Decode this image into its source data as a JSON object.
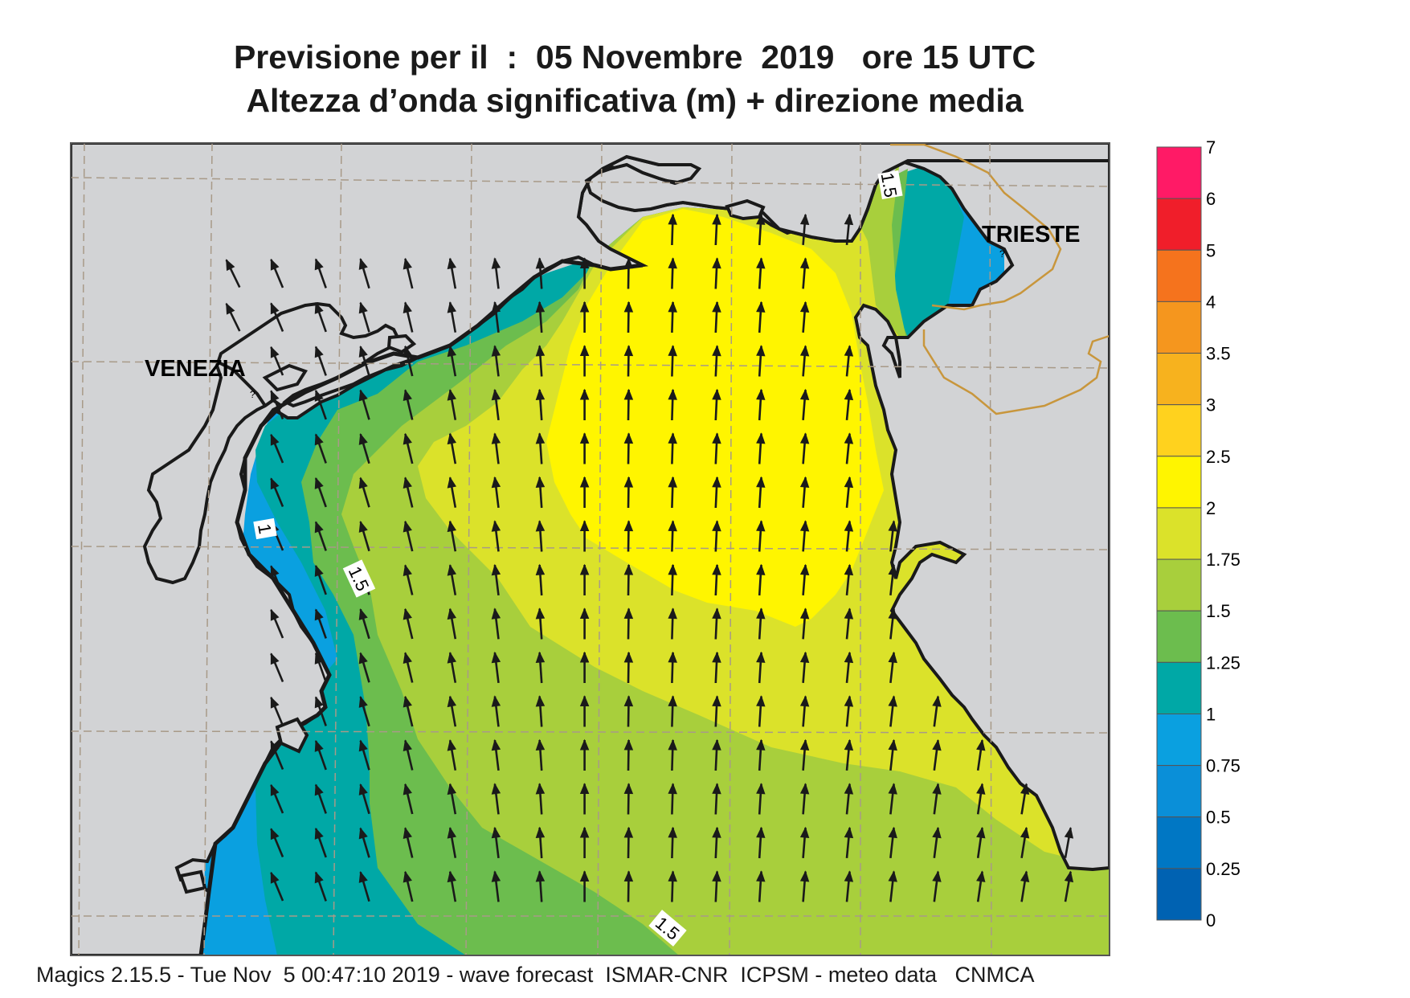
{
  "title_line1": "Previsione per il  :  05 Novembre  2019   ore 15 UTC",
  "title_line2": "Altezza d’onda significativa (m) + direzione media",
  "cities": {
    "venezia": "VENEZIA",
    "trieste": "TRIESTE"
  },
  "contour_labels": {
    "top": "1.5",
    "left_one": "1",
    "left_mid": "1.5",
    "bottom": "1.5"
  },
  "legend": {
    "labels": [
      "7",
      "6",
      "5",
      "4",
      "3.5",
      "3",
      "2.5",
      "2",
      "1.75",
      "1.5",
      "1.25",
      "1",
      "0.75",
      "0.5",
      "0.25",
      "0"
    ],
    "colors": [
      "#ff1a66",
      "#f01e2a",
      "#f5731d",
      "#f5961e",
      "#f7b21e",
      "#ffd21e",
      "#fff500",
      "#dbe22a",
      "#a8cf3c",
      "#6cbd4e",
      "#00a8a6",
      "#0aa0e0",
      "#0a8fd8",
      "#0077c4",
      "#0062b2"
    ]
  },
  "colors": {
    "land": "#d2d3d5",
    "coast": "#1a1a1a",
    "grid": "#a89a88",
    "border": "#c8963c"
  },
  "footer": "Magics 2.15.5 - Tue Nov  5 00:47:10 2019 - wave forecast  ISMAR-CNR  ICPSM - meteo data   CNMCA"
}
